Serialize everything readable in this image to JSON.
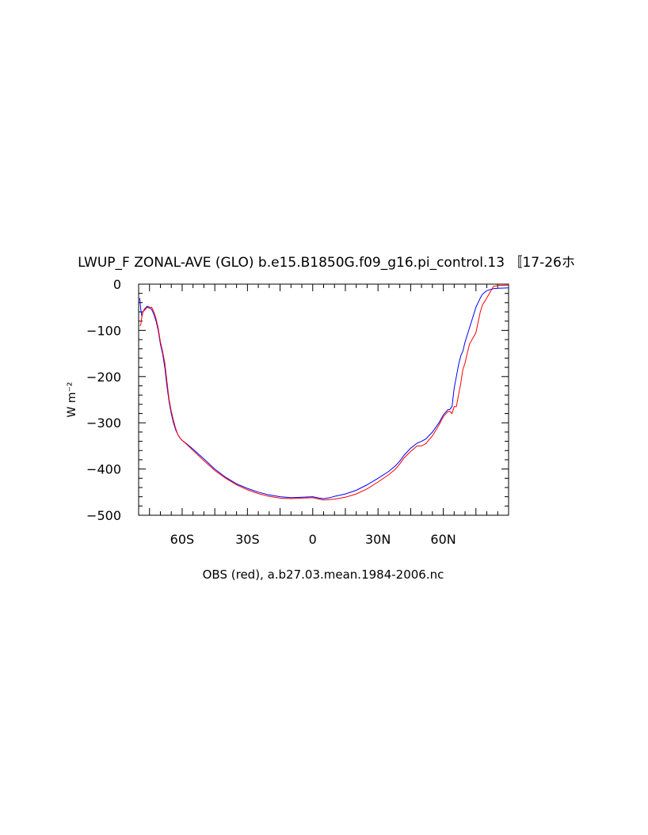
{
  "chart_data": {
    "type": "line",
    "title": "LWUP_F ZONAL-AVE (GLO) b.e15.B1850G.f09_g16.pi_control.13 〚17-26ホ",
    "ylabel": "W m⁻²",
    "xlabel": "OBS (red), a.b27.03.mean.1984-2006.nc",
    "xlim": [
      -80,
      90
    ],
    "ylim": [
      -500,
      0
    ],
    "x_ticks": [
      {
        "value": -60,
        "label": "60S"
      },
      {
        "value": -30,
        "label": "30S"
      },
      {
        "value": 0,
        "label": "0"
      },
      {
        "value": 30,
        "label": "30N"
      },
      {
        "value": 60,
        "label": "60N"
      }
    ],
    "y_ticks": [
      {
        "value": 0,
        "label": "0"
      },
      {
        "value": -100,
        "label": "−100"
      },
      {
        "value": -200,
        "label": "−200"
      },
      {
        "value": -300,
        "label": "−300"
      },
      {
        "value": -400,
        "label": "−400"
      },
      {
        "value": -500,
        "label": "−500"
      }
    ],
    "grid": false,
    "series": [
      {
        "color": "#0000ff",
        "x": [
          -79.5,
          -79,
          -78.5,
          -78,
          -77,
          -76,
          -75,
          -74,
          -73,
          -72,
          -71,
          -70,
          -69,
          -68,
          -67,
          -66,
          -65,
          -64,
          -63,
          -62,
          -61,
          -60,
          -58,
          -55,
          -50,
          -45,
          -40,
          -35,
          -30,
          -25,
          -20,
          -15,
          -10,
          -5,
          0,
          3,
          5,
          8,
          10,
          15,
          20,
          25,
          30,
          35,
          38,
          40,
          42,
          45,
          48,
          50,
          52,
          55,
          58,
          60,
          62,
          63,
          64,
          65,
          66,
          67,
          68,
          69,
          70,
          72,
          75,
          77,
          78,
          80,
          83,
          85,
          90
        ],
        "values": [
          -30,
          -55,
          -70,
          -60,
          -52,
          -48,
          -50,
          -55,
          -65,
          -80,
          -100,
          -130,
          -150,
          -180,
          -220,
          -255,
          -280,
          -300,
          -315,
          -325,
          -333,
          -338,
          -345,
          -357,
          -378,
          -400,
          -418,
          -432,
          -442,
          -450,
          -456,
          -460,
          -462,
          -461,
          -460,
          -463,
          -464,
          -462,
          -459,
          -454,
          -446,
          -434,
          -420,
          -405,
          -393,
          -383,
          -370,
          -355,
          -344,
          -340,
          -335,
          -320,
          -300,
          -283,
          -272,
          -271,
          -265,
          -225,
          -200,
          -175,
          -155,
          -145,
          -125,
          -95,
          -50,
          -30,
          -22,
          -14,
          -10,
          -9,
          -8
        ]
      },
      {
        "color": "#ff0000",
        "x": [
          -79.5,
          -79,
          -78.5,
          -78,
          -77,
          -76,
          -75,
          -74,
          -73,
          -72,
          -71,
          -70,
          -69,
          -68,
          -67,
          -66,
          -65,
          -64,
          -63,
          -62,
          -61,
          -60,
          -58,
          -55,
          -50,
          -45,
          -40,
          -35,
          -30,
          -25,
          -20,
          -15,
          -10,
          -5,
          0,
          3,
          5,
          8,
          10,
          15,
          20,
          25,
          30,
          35,
          38,
          40,
          42,
          45,
          48,
          50,
          52,
          55,
          58,
          60,
          62,
          63,
          64,
          65,
          66,
          67,
          68,
          69,
          70,
          72,
          75,
          77,
          78,
          80,
          83,
          85,
          90
        ],
        "values": [
          -90,
          -88,
          -70,
          -60,
          -55,
          -50,
          -52,
          -50,
          -60,
          -75,
          -95,
          -125,
          -145,
          -170,
          -210,
          -250,
          -275,
          -295,
          -312,
          -325,
          -333,
          -338,
          -346,
          -360,
          -382,
          -403,
          -420,
          -434,
          -445,
          -453,
          -459,
          -463,
          -464,
          -463,
          -462,
          -465,
          -467,
          -466,
          -465,
          -461,
          -454,
          -443,
          -428,
          -412,
          -400,
          -389,
          -376,
          -362,
          -350,
          -350,
          -345,
          -328,
          -305,
          -287,
          -276,
          -275,
          -280,
          -265,
          -265,
          -240,
          -215,
          -185,
          -170,
          -130,
          -105,
          -60,
          -45,
          -30,
          -5,
          -3,
          -2
        ]
      }
    ]
  }
}
